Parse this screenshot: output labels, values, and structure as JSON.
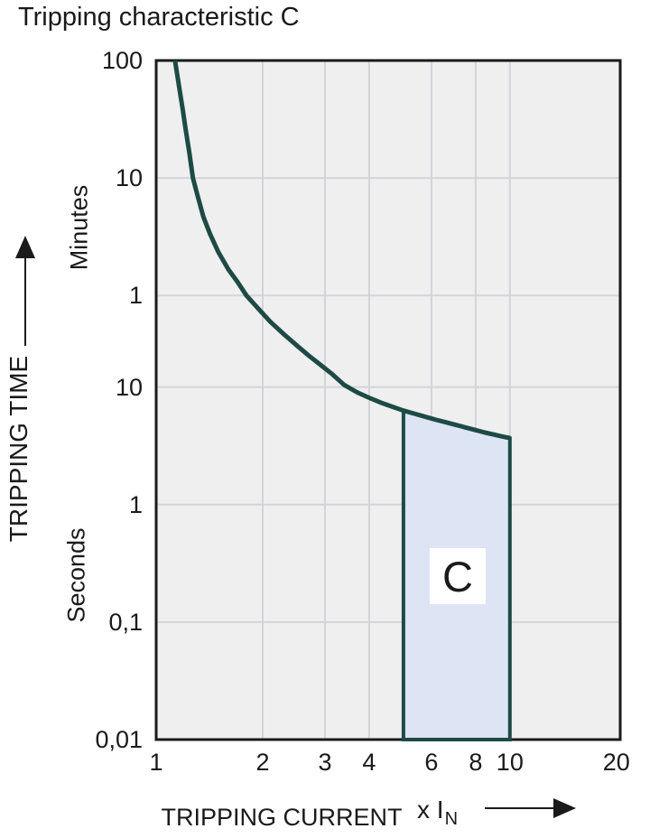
{
  "title": "Tripping characteristic C",
  "colors": {
    "ink": "#1a1a1a",
    "curve": "#1e4a46",
    "region_fill": "#dde4f4",
    "plot_bg": "#efeff0",
    "grid": "#d4d4d8",
    "arrow": "#1a1a1a",
    "page_bg": "#ffffff"
  },
  "chart_data": {
    "type": "line",
    "title": "Tripping characteristic C",
    "legend": "none",
    "grid": "on",
    "x_axis": {
      "label": "TRIPPING CURRENT",
      "unit_prefix": "x I",
      "unit_subscript": "N",
      "scale": "log",
      "range": [
        1,
        20.5
      ],
      "ticks": [
        {
          "value": 1,
          "label": "1"
        },
        {
          "value": 2,
          "label": "2"
        },
        {
          "value": 3,
          "label": "3"
        },
        {
          "value": 4,
          "label": "4"
        },
        {
          "value": 6,
          "label": "6"
        },
        {
          "value": 8,
          "label": "8"
        },
        {
          "value": 10,
          "label": "10"
        },
        {
          "value": 20,
          "label": "20"
        }
      ],
      "gridlines": [
        2,
        3,
        4,
        6,
        8,
        10
      ]
    },
    "y_axis": {
      "label": "TRIPPING TIME",
      "scale": "log",
      "range_seconds": [
        0.01,
        6000
      ],
      "sections": [
        {
          "label": "Minutes"
        },
        {
          "label": "Seconds"
        }
      ],
      "ticks": [
        {
          "seconds": 6000,
          "label": "100",
          "section": "minutes"
        },
        {
          "seconds": 600,
          "label": "10",
          "section": "minutes"
        },
        {
          "seconds": 60,
          "label": "1",
          "section": "minutes"
        },
        {
          "seconds": 10,
          "label": "10",
          "section": "seconds"
        },
        {
          "seconds": 1,
          "label": "1",
          "section": "seconds"
        },
        {
          "seconds": 0.1,
          "label": "0,1",
          "section": "seconds"
        },
        {
          "seconds": 0.01,
          "label": "0,01",
          "section": "seconds"
        }
      ],
      "gridlines_seconds": [
        600,
        60,
        10,
        1,
        0.1
      ]
    },
    "series": [
      {
        "name": "C tripping curve",
        "points_x_in_t_seconds": [
          [
            1.13,
            6000
          ],
          [
            1.15,
            4300
          ],
          [
            1.17,
            3100
          ],
          [
            1.19,
            2250
          ],
          [
            1.21,
            1600
          ],
          [
            1.24,
            1000
          ],
          [
            1.27,
            600
          ],
          [
            1.31,
            420
          ],
          [
            1.36,
            280
          ],
          [
            1.42,
            200
          ],
          [
            1.5,
            140
          ],
          [
            1.6,
            100
          ],
          [
            1.7,
            78
          ],
          [
            1.8,
            60
          ],
          [
            1.95,
            46
          ],
          [
            2.1,
            36
          ],
          [
            2.3,
            28
          ],
          [
            2.5,
            22.5
          ],
          [
            2.7,
            18.5
          ],
          [
            2.9,
            15.6
          ],
          [
            3.15,
            12.8
          ],
          [
            3.4,
            10.4
          ],
          [
            3.7,
            9.0
          ],
          [
            4.0,
            8.1
          ],
          [
            4.3,
            7.4
          ],
          [
            4.65,
            6.8
          ],
          [
            5.0,
            6.3
          ],
          [
            5.4,
            5.9
          ],
          [
            5.8,
            5.55
          ],
          [
            6.2,
            5.25
          ],
          [
            6.6,
            5.0
          ],
          [
            7.0,
            4.78
          ],
          [
            7.5,
            4.52
          ],
          [
            8.0,
            4.3
          ],
          [
            8.5,
            4.1
          ],
          [
            9.0,
            3.94
          ],
          [
            9.5,
            3.8
          ],
          [
            10.0,
            3.68
          ]
        ]
      }
    ],
    "region": {
      "label": "C",
      "x_range": [
        5,
        10
      ],
      "t_bottom_seconds": 0.01,
      "top_follows": "curve"
    }
  }
}
